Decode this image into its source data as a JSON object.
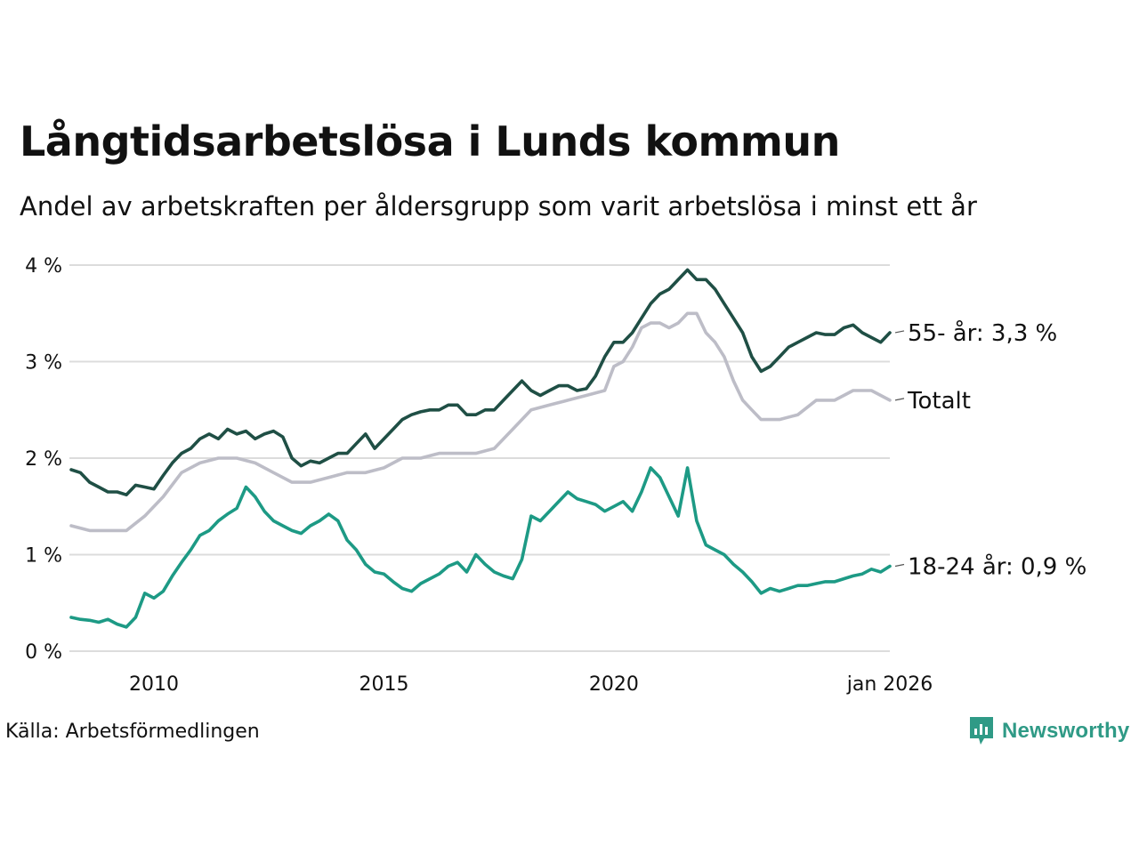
{
  "header": {
    "title": "Långtidsarbetslösa i Lunds kommun",
    "subtitle": "Andel av arbetskraften per åldersgrupp som varit arbetslösa i minst ett år"
  },
  "footer": {
    "source": "Källa: Arbetsförmedlingen",
    "brand": "Newsworthy"
  },
  "colors": {
    "series_55": "#1f4f45",
    "series_total": "#bdbdc7",
    "series_18_24": "#1d9a85",
    "grid": "#dcdcdc",
    "brand": "#2f9a86"
  },
  "chart_data": {
    "type": "line",
    "title": "Långtidsarbetslösa i Lunds kommun",
    "subtitle": "Andel av arbetskraften per åldersgrupp som varit arbetslösa i minst ett år",
    "xlabel": "",
    "ylabel": "",
    "xlim": [
      2008.2,
      2026.0
    ],
    "ylim": [
      0,
      4
    ],
    "yticks": [
      {
        "value": 0,
        "label": "0 %"
      },
      {
        "value": 1,
        "label": "1 %"
      },
      {
        "value": 2,
        "label": "2 %"
      },
      {
        "value": 3,
        "label": "3 %"
      },
      {
        "value": 4,
        "label": "4 %"
      }
    ],
    "xticks": [
      {
        "value": 2010,
        "label": "2010"
      },
      {
        "value": 2015,
        "label": "2015"
      },
      {
        "value": 2020,
        "label": "2020"
      },
      {
        "value": 2026,
        "label": "jan 2026"
      }
    ],
    "grid": true,
    "series": [
      {
        "name": "55- år",
        "end_label": "55- år: 3,3 %",
        "color": "#1f4f45",
        "points": [
          [
            2008.2,
            1.88
          ],
          [
            2008.4,
            1.85
          ],
          [
            2008.6,
            1.75
          ],
          [
            2008.8,
            1.7
          ],
          [
            2009.0,
            1.65
          ],
          [
            2009.2,
            1.65
          ],
          [
            2009.4,
            1.62
          ],
          [
            2009.6,
            1.72
          ],
          [
            2009.8,
            1.7
          ],
          [
            2010.0,
            1.68
          ],
          [
            2010.2,
            1.82
          ],
          [
            2010.4,
            1.95
          ],
          [
            2010.6,
            2.05
          ],
          [
            2010.8,
            2.1
          ],
          [
            2011.0,
            2.2
          ],
          [
            2011.2,
            2.25
          ],
          [
            2011.4,
            2.2
          ],
          [
            2011.6,
            2.3
          ],
          [
            2011.8,
            2.25
          ],
          [
            2012.0,
            2.28
          ],
          [
            2012.2,
            2.2
          ],
          [
            2012.4,
            2.25
          ],
          [
            2012.6,
            2.28
          ],
          [
            2012.8,
            2.22
          ],
          [
            2013.0,
            2.0
          ],
          [
            2013.2,
            1.92
          ],
          [
            2013.4,
            1.97
          ],
          [
            2013.6,
            1.95
          ],
          [
            2013.8,
            2.0
          ],
          [
            2014.0,
            2.05
          ],
          [
            2014.2,
            2.05
          ],
          [
            2014.4,
            2.15
          ],
          [
            2014.6,
            2.25
          ],
          [
            2014.8,
            2.1
          ],
          [
            2015.0,
            2.2
          ],
          [
            2015.2,
            2.3
          ],
          [
            2015.4,
            2.4
          ],
          [
            2015.6,
            2.45
          ],
          [
            2015.8,
            2.48
          ],
          [
            2016.0,
            2.5
          ],
          [
            2016.2,
            2.5
          ],
          [
            2016.4,
            2.55
          ],
          [
            2016.6,
            2.55
          ],
          [
            2016.8,
            2.45
          ],
          [
            2017.0,
            2.45
          ],
          [
            2017.2,
            2.5
          ],
          [
            2017.4,
            2.5
          ],
          [
            2017.6,
            2.6
          ],
          [
            2017.8,
            2.7
          ],
          [
            2018.0,
            2.8
          ],
          [
            2018.2,
            2.7
          ],
          [
            2018.4,
            2.65
          ],
          [
            2018.6,
            2.7
          ],
          [
            2018.8,
            2.75
          ],
          [
            2019.0,
            2.75
          ],
          [
            2019.2,
            2.7
          ],
          [
            2019.4,
            2.72
          ],
          [
            2019.6,
            2.85
          ],
          [
            2019.8,
            3.05
          ],
          [
            2020.0,
            3.2
          ],
          [
            2020.2,
            3.2
          ],
          [
            2020.4,
            3.3
          ],
          [
            2020.6,
            3.45
          ],
          [
            2020.8,
            3.6
          ],
          [
            2021.0,
            3.7
          ],
          [
            2021.2,
            3.75
          ],
          [
            2021.4,
            3.85
          ],
          [
            2021.6,
            3.95
          ],
          [
            2021.8,
            3.85
          ],
          [
            2022.0,
            3.85
          ],
          [
            2022.2,
            3.75
          ],
          [
            2022.4,
            3.6
          ],
          [
            2022.6,
            3.45
          ],
          [
            2022.8,
            3.3
          ],
          [
            2023.0,
            3.05
          ],
          [
            2023.2,
            2.9
          ],
          [
            2023.4,
            2.95
          ],
          [
            2023.6,
            3.05
          ],
          [
            2023.8,
            3.15
          ],
          [
            2024.0,
            3.2
          ],
          [
            2024.2,
            3.25
          ],
          [
            2024.4,
            3.3
          ],
          [
            2024.6,
            3.28
          ],
          [
            2024.8,
            3.28
          ],
          [
            2025.0,
            3.35
          ],
          [
            2025.2,
            3.38
          ],
          [
            2025.4,
            3.3
          ],
          [
            2025.6,
            3.25
          ],
          [
            2025.8,
            3.2
          ],
          [
            2026.0,
            3.3
          ]
        ]
      },
      {
        "name": "Totalt",
        "end_label": "Totalt",
        "color": "#bdbdc7",
        "points": [
          [
            2008.2,
            1.3
          ],
          [
            2008.6,
            1.25
          ],
          [
            2009.0,
            1.25
          ],
          [
            2009.4,
            1.25
          ],
          [
            2009.8,
            1.4
          ],
          [
            2010.2,
            1.6
          ],
          [
            2010.6,
            1.85
          ],
          [
            2011.0,
            1.95
          ],
          [
            2011.4,
            2.0
          ],
          [
            2011.8,
            2.0
          ],
          [
            2012.2,
            1.95
          ],
          [
            2012.6,
            1.85
          ],
          [
            2013.0,
            1.75
          ],
          [
            2013.4,
            1.75
          ],
          [
            2013.8,
            1.8
          ],
          [
            2014.2,
            1.85
          ],
          [
            2014.6,
            1.85
          ],
          [
            2015.0,
            1.9
          ],
          [
            2015.4,
            2.0
          ],
          [
            2015.8,
            2.0
          ],
          [
            2016.2,
            2.05
          ],
          [
            2016.6,
            2.05
          ],
          [
            2017.0,
            2.05
          ],
          [
            2017.4,
            2.1
          ],
          [
            2017.8,
            2.3
          ],
          [
            2018.2,
            2.5
          ],
          [
            2018.6,
            2.55
          ],
          [
            2019.0,
            2.6
          ],
          [
            2019.4,
            2.65
          ],
          [
            2019.8,
            2.7
          ],
          [
            2020.0,
            2.95
          ],
          [
            2020.2,
            3.0
          ],
          [
            2020.4,
            3.15
          ],
          [
            2020.6,
            3.35
          ],
          [
            2020.8,
            3.4
          ],
          [
            2021.0,
            3.4
          ],
          [
            2021.2,
            3.35
          ],
          [
            2021.4,
            3.4
          ],
          [
            2021.6,
            3.5
          ],
          [
            2021.8,
            3.5
          ],
          [
            2022.0,
            3.3
          ],
          [
            2022.2,
            3.2
          ],
          [
            2022.4,
            3.05
          ],
          [
            2022.6,
            2.8
          ],
          [
            2022.8,
            2.6
          ],
          [
            2023.0,
            2.5
          ],
          [
            2023.2,
            2.4
          ],
          [
            2023.6,
            2.4
          ],
          [
            2024.0,
            2.45
          ],
          [
            2024.4,
            2.6
          ],
          [
            2024.8,
            2.6
          ],
          [
            2025.0,
            2.65
          ],
          [
            2025.2,
            2.7
          ],
          [
            2025.6,
            2.7
          ],
          [
            2026.0,
            2.6
          ]
        ]
      },
      {
        "name": "18-24 år",
        "end_label": "18-24 år: 0,9 %",
        "color": "#1d9a85",
        "points": [
          [
            2008.2,
            0.35
          ],
          [
            2008.4,
            0.33
          ],
          [
            2008.6,
            0.32
          ],
          [
            2008.8,
            0.3
          ],
          [
            2009.0,
            0.33
          ],
          [
            2009.2,
            0.28
          ],
          [
            2009.4,
            0.25
          ],
          [
            2009.6,
            0.35
          ],
          [
            2009.8,
            0.6
          ],
          [
            2010.0,
            0.55
          ],
          [
            2010.2,
            0.62
          ],
          [
            2010.4,
            0.78
          ],
          [
            2010.6,
            0.92
          ],
          [
            2010.8,
            1.05
          ],
          [
            2011.0,
            1.2
          ],
          [
            2011.2,
            1.25
          ],
          [
            2011.4,
            1.35
          ],
          [
            2011.6,
            1.42
          ],
          [
            2011.8,
            1.48
          ],
          [
            2012.0,
            1.7
          ],
          [
            2012.2,
            1.6
          ],
          [
            2012.4,
            1.45
          ],
          [
            2012.6,
            1.35
          ],
          [
            2012.8,
            1.3
          ],
          [
            2013.0,
            1.25
          ],
          [
            2013.2,
            1.22
          ],
          [
            2013.4,
            1.3
          ],
          [
            2013.6,
            1.35
          ],
          [
            2013.8,
            1.42
          ],
          [
            2014.0,
            1.35
          ],
          [
            2014.2,
            1.15
          ],
          [
            2014.4,
            1.05
          ],
          [
            2014.6,
            0.9
          ],
          [
            2014.8,
            0.82
          ],
          [
            2015.0,
            0.8
          ],
          [
            2015.2,
            0.72
          ],
          [
            2015.4,
            0.65
          ],
          [
            2015.6,
            0.62
          ],
          [
            2015.8,
            0.7
          ],
          [
            2016.0,
            0.75
          ],
          [
            2016.2,
            0.8
          ],
          [
            2016.4,
            0.88
          ],
          [
            2016.6,
            0.92
          ],
          [
            2016.8,
            0.82
          ],
          [
            2017.0,
            1.0
          ],
          [
            2017.2,
            0.9
          ],
          [
            2017.4,
            0.82
          ],
          [
            2017.6,
            0.78
          ],
          [
            2017.8,
            0.75
          ],
          [
            2018.0,
            0.95
          ],
          [
            2018.2,
            1.4
          ],
          [
            2018.4,
            1.35
          ],
          [
            2018.6,
            1.45
          ],
          [
            2018.8,
            1.55
          ],
          [
            2019.0,
            1.65
          ],
          [
            2019.2,
            1.58
          ],
          [
            2019.4,
            1.55
          ],
          [
            2019.6,
            1.52
          ],
          [
            2019.8,
            1.45
          ],
          [
            2020.0,
            1.5
          ],
          [
            2020.2,
            1.55
          ],
          [
            2020.4,
            1.45
          ],
          [
            2020.6,
            1.65
          ],
          [
            2020.8,
            1.9
          ],
          [
            2021.0,
            1.8
          ],
          [
            2021.2,
            1.6
          ],
          [
            2021.4,
            1.4
          ],
          [
            2021.6,
            1.9
          ],
          [
            2021.8,
            1.35
          ],
          [
            2022.0,
            1.1
          ],
          [
            2022.2,
            1.05
          ],
          [
            2022.4,
            1.0
          ],
          [
            2022.6,
            0.9
          ],
          [
            2022.8,
            0.82
          ],
          [
            2023.0,
            0.72
          ],
          [
            2023.2,
            0.6
          ],
          [
            2023.4,
            0.65
          ],
          [
            2023.6,
            0.62
          ],
          [
            2023.8,
            0.65
          ],
          [
            2024.0,
            0.68
          ],
          [
            2024.2,
            0.68
          ],
          [
            2024.4,
            0.7
          ],
          [
            2024.6,
            0.72
          ],
          [
            2024.8,
            0.72
          ],
          [
            2025.0,
            0.75
          ],
          [
            2025.2,
            0.78
          ],
          [
            2025.4,
            0.8
          ],
          [
            2025.6,
            0.85
          ],
          [
            2025.8,
            0.82
          ],
          [
            2026.0,
            0.88
          ]
        ]
      }
    ]
  }
}
